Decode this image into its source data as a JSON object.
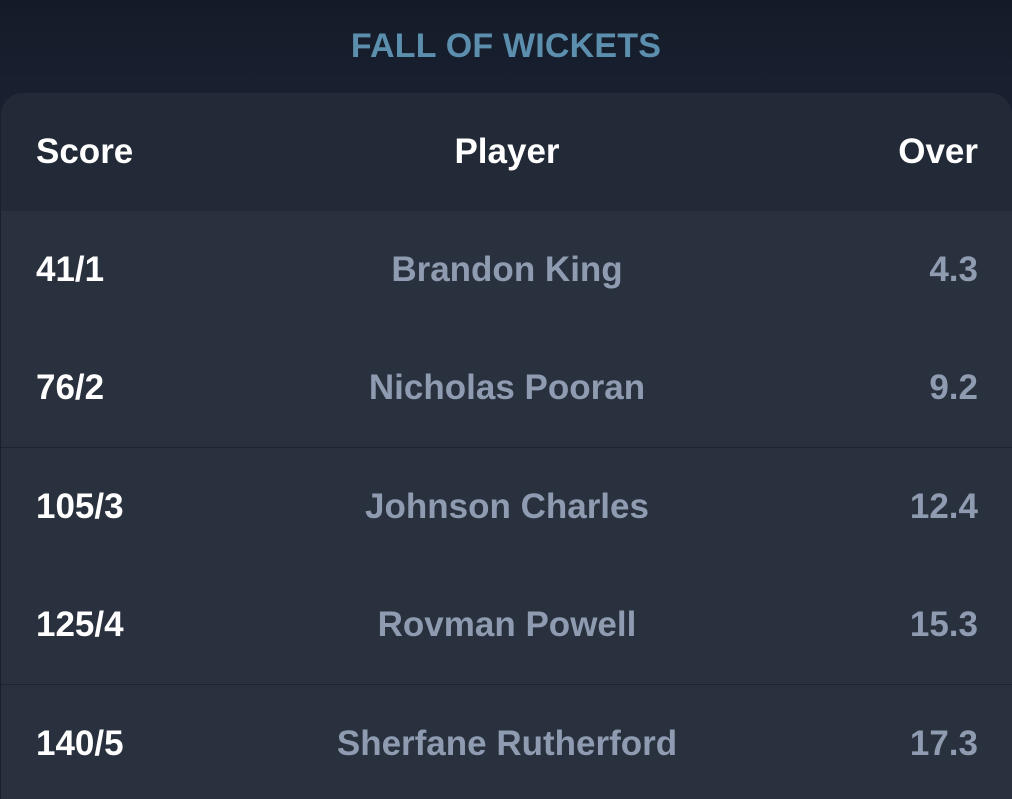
{
  "title": "FALL OF WICKETS",
  "table": {
    "headers": {
      "score": "Score",
      "player": "Player",
      "over": "Over"
    },
    "rows": [
      {
        "score": "41/1",
        "player": "Brandon King",
        "over": "4.3"
      },
      {
        "score": "76/2",
        "player": "Nicholas Pooran",
        "over": "9.2"
      },
      {
        "score": "105/3",
        "player": "Johnson Charles",
        "over": "12.4"
      },
      {
        "score": "125/4",
        "player": "Rovman Powell",
        "over": "15.3"
      },
      {
        "score": "140/5",
        "player": "Sherfane Rutherford",
        "over": "17.3"
      }
    ]
  },
  "colors": {
    "background": "#182030",
    "card": "#2a313e",
    "header": "#222937",
    "title": "#5c8fae",
    "muted_text": "#8e9bb0"
  }
}
